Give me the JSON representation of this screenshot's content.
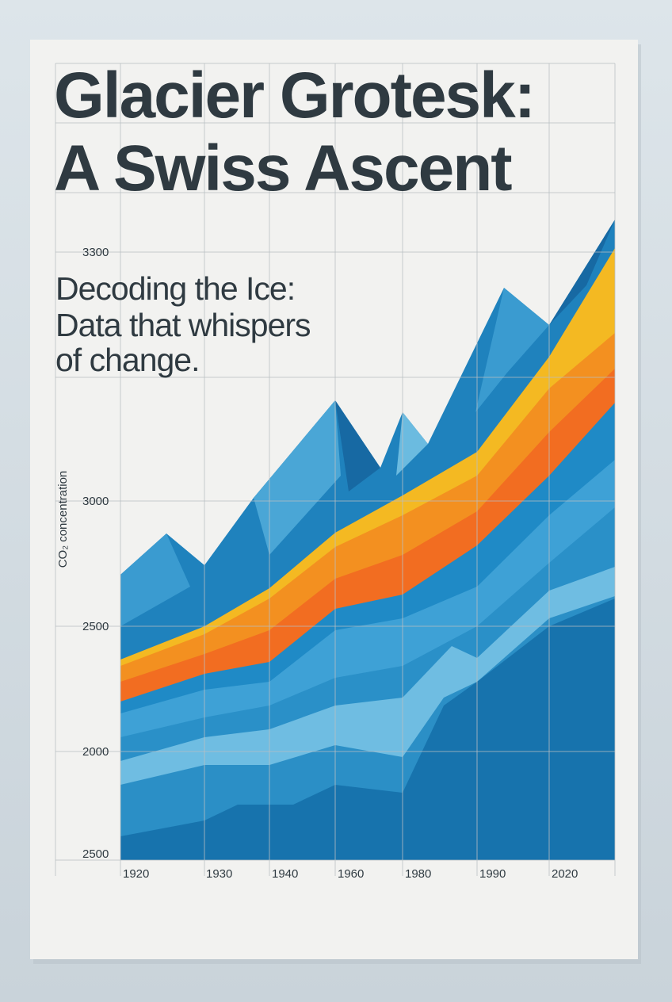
{
  "poster": {
    "title": [
      "Glacier Grotesk:",
      "A Swiss Ascent"
    ],
    "subtitle": [
      "Decoding the Ice:",
      "Data that whispers",
      "of change."
    ],
    "y_axis_label": "CO₂ concentration",
    "y_labels": [
      "3300",
      "3000",
      "2500",
      "2000",
      "2500"
    ],
    "x_labels": [
      "1920",
      "1930",
      "1940",
      "1960",
      "1980",
      "1990",
      "2020"
    ]
  }
}
